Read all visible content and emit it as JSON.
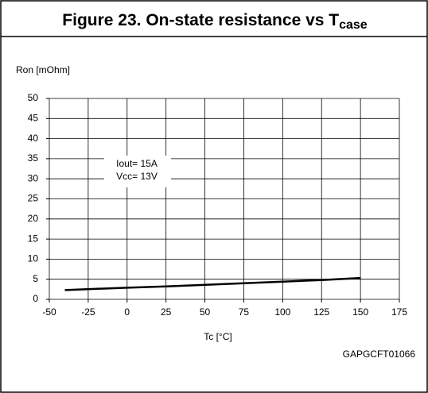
{
  "chart_data": {
    "type": "line",
    "title": "Figure 23. On-state resistance vs T",
    "title_subscript": "case",
    "ylabel": "Ron [mOhm]",
    "xlabel": "Tc [°C]",
    "code": "GAPGCFT01066",
    "annotation": [
      "Iout= 15A",
      "Vcc= 13V"
    ],
    "x": [
      -40,
      0,
      25,
      50,
      75,
      100,
      125,
      150
    ],
    "series": [
      {
        "name": "Ron",
        "color": "#000000",
        "values": [
          2.3,
          2.9,
          3.2,
          3.6,
          4.0,
          4.4,
          4.8,
          5.3
        ]
      }
    ],
    "xlim": [
      -50,
      175
    ],
    "xticks": [
      -50,
      -25,
      0,
      25,
      50,
      75,
      100,
      125,
      150,
      175
    ],
    "ylim": [
      0,
      50
    ],
    "yticks": [
      0,
      5,
      10,
      15,
      20,
      25,
      30,
      35,
      40,
      45,
      50
    ],
    "grid": true
  }
}
